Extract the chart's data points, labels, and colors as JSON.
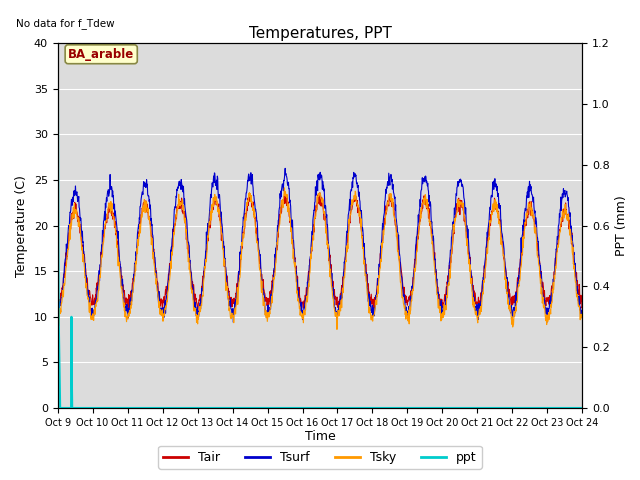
{
  "title": "Temperatures, PPT",
  "xlabel": "Time",
  "ylabel_left": "Temperature (C)",
  "ylabel_right": "PPT (mm)",
  "no_data_text": "No data for f_Tdew",
  "site_label": "BA_arable",
  "xlim": [
    0,
    15
  ],
  "ylim_left": [
    0,
    40
  ],
  "ylim_right": [
    0.0,
    1.2
  ],
  "xtick_labels": [
    "Oct 9",
    "Oct 10",
    "Oct 11",
    "Oct 12",
    "Oct 13",
    "Oct 14",
    "Oct 15",
    "Oct 16",
    "Oct 17",
    "Oct 18",
    "Oct 19",
    "Oct 20",
    "Oct 21",
    "Oct 22",
    "Oct 23",
    "Oct 24"
  ],
  "colors": {
    "Tair": "#cc0000",
    "Tsurf": "#0000cc",
    "Tsky": "#ff9900",
    "ppt": "#00cccc",
    "background": "#dcdcdc",
    "site_box_bg": "#ffffcc",
    "site_box_edge": "#996600"
  },
  "yticks_left": [
    0,
    5,
    10,
    15,
    20,
    25,
    30,
    35,
    40
  ],
  "yticks_right": [
    0.0,
    0.2,
    0.4,
    0.6,
    0.8,
    1.0,
    1.2
  ],
  "legend_entries": [
    "Tair",
    "Tsurf",
    "Tsky",
    "ppt"
  ]
}
